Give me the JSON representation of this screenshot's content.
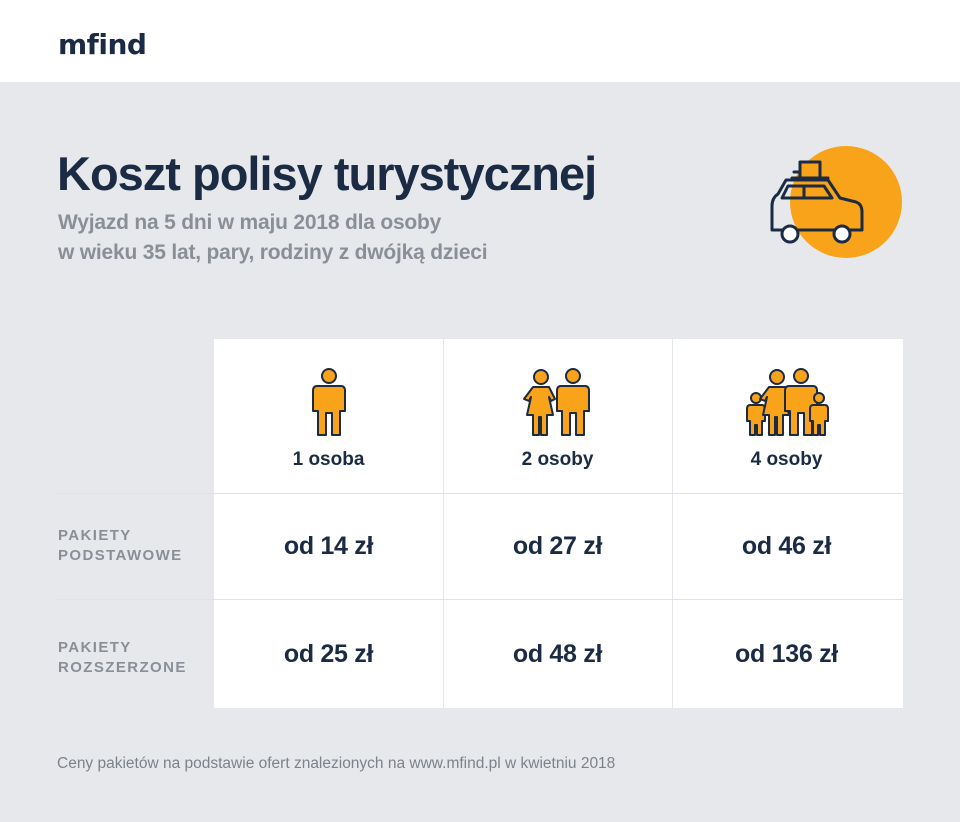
{
  "brand": {
    "logo_text": "mfind"
  },
  "header": {
    "title": "Koszt polisy turystycznej",
    "subtitle_line1": "Wyjazd na 5 dni w maju 2018 dla osoby",
    "subtitle_line2": "w wieku 35 lat, pary, rodziny z dwójką dzieci",
    "icon": "car-with-luggage-icon"
  },
  "colors": {
    "navy": "#1b2b44",
    "orange": "#f9a31a",
    "gray_text": "#8a8f97",
    "background": "#e6e8eb"
  },
  "table": {
    "columns": [
      {
        "label": "1 osoba",
        "icon": "single-person-icon"
      },
      {
        "label": "2 osoby",
        "icon": "couple-icon"
      },
      {
        "label": "4 osoby",
        "icon": "family-icon"
      }
    ],
    "rows": [
      {
        "label_line1": "PAKIETY",
        "label_line2": "PODSTAWOWE",
        "values": [
          "od 14 zł",
          "od 27 zł",
          "od 46 zł"
        ]
      },
      {
        "label_line1": "PAKIETY",
        "label_line2": "ROZSZERZONE",
        "values": [
          "od 25 zł",
          "od 48 zł",
          "od 136 zł"
        ]
      }
    ]
  },
  "footnote": "Ceny pakietów na podstawie ofert znalezionych na www.mfind.pl w kwietniu 2018"
}
